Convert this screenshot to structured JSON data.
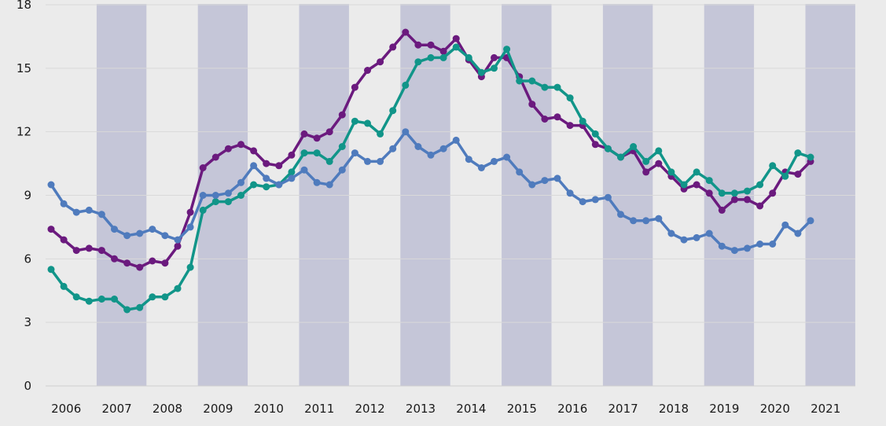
{
  "chart_data": {
    "type": "line",
    "title": "",
    "xlabel": "",
    "ylabel": "",
    "ylim": [
      0,
      18
    ],
    "y_ticks": [
      "0",
      "3",
      "6",
      "9",
      "12",
      "15",
      "18"
    ],
    "x_ticks": [
      "2006",
      "2007",
      "2008",
      "2009",
      "2010",
      "2011",
      "2012",
      "2013",
      "2014",
      "2015",
      "2016",
      "2017",
      "2018",
      "2019",
      "2020",
      "2021"
    ],
    "x_start_year": 2006,
    "points_per_year": 4,
    "grid": "horizontal",
    "legend": "none",
    "background_color": "#ebebeb",
    "band_color": "#c5c6d8",
    "shaded_years": [
      "2007",
      "2009",
      "2011",
      "2013",
      "2015",
      "2017",
      "2019",
      "2021"
    ],
    "series": [
      {
        "color": "#6b1a7e",
        "values": [
          7.4,
          6.9,
          6.4,
          6.5,
          6.4,
          6.0,
          5.8,
          5.6,
          5.9,
          5.8,
          6.6,
          8.2,
          10.3,
          10.8,
          11.2,
          11.4,
          11.1,
          10.5,
          10.4,
          10.9,
          11.9,
          11.7,
          12.0,
          12.8,
          14.1,
          14.9,
          15.3,
          16.0,
          16.7,
          16.1,
          16.1,
          15.8,
          16.4,
          15.4,
          14.6,
          15.5,
          15.5,
          14.6,
          13.3,
          12.6,
          12.7,
          12.3,
          12.3,
          11.4,
          11.2,
          10.8,
          11.1,
          10.1,
          10.5,
          9.9,
          9.3,
          9.5,
          9.1,
          8.3,
          8.8,
          8.8,
          8.5,
          9.1,
          10.1,
          10.0,
          10.6
        ]
      },
      {
        "color": "#119589",
        "values": [
          5.5,
          4.7,
          4.2,
          4.0,
          4.1,
          4.1,
          3.6,
          3.7,
          4.2,
          4.2,
          4.6,
          5.6,
          8.3,
          8.7,
          8.7,
          9.0,
          9.5,
          9.4,
          9.5,
          10.1,
          11.0,
          11.0,
          10.6,
          11.3,
          12.5,
          12.4,
          11.9,
          13.0,
          14.2,
          15.3,
          15.5,
          15.5,
          16.0,
          15.5,
          14.8,
          15.0,
          15.9,
          14.4,
          14.4,
          14.1,
          14.1,
          13.6,
          12.5,
          11.9,
          11.2,
          10.8,
          11.3,
          10.6,
          11.1,
          10.1,
          9.5,
          10.1,
          9.7,
          9.1,
          9.1,
          9.2,
          9.5,
          10.4,
          9.9,
          11.0,
          10.8
        ]
      },
      {
        "color": "#4f7bbd",
        "values": [
          9.5,
          8.6,
          8.2,
          8.3,
          8.1,
          7.4,
          7.1,
          7.2,
          7.4,
          7.1,
          6.9,
          7.5,
          9.0,
          9.0,
          9.1,
          9.6,
          10.4,
          9.8,
          9.5,
          9.8,
          10.2,
          9.6,
          9.5,
          10.2,
          11.0,
          10.6,
          10.6,
          11.2,
          12.0,
          11.3,
          10.9,
          11.2,
          11.6,
          10.7,
          10.3,
          10.6,
          10.8,
          10.1,
          9.5,
          9.7,
          9.8,
          9.1,
          8.7,
          8.8,
          8.9,
          8.1,
          7.8,
          7.8,
          7.9,
          7.2,
          6.9,
          7.0,
          7.2,
          6.6,
          6.4,
          6.5,
          6.7,
          6.7,
          7.6,
          7.2,
          7.8
        ]
      }
    ]
  }
}
